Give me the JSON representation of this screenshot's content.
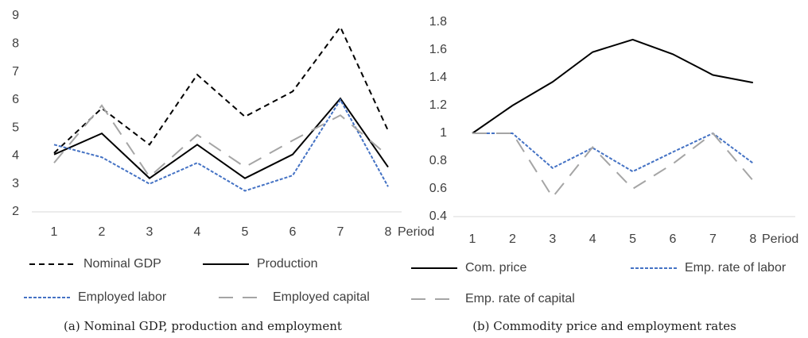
{
  "chart_data": [
    {
      "type": "line",
      "caption": "(a) Nominal GDP, production and employment",
      "x_label": "Period",
      "categories": [
        "1",
        "2",
        "3",
        "4",
        "5",
        "6",
        "7",
        "8"
      ],
      "ylim": [
        2,
        9
      ],
      "yticks": [
        2,
        3,
        4,
        5,
        6,
        7,
        8,
        9
      ],
      "grid": false,
      "legend": "bottom",
      "series": [
        {
          "name": "Nominal GDP",
          "color": "#000000",
          "style": "dashed",
          "values": [
            4.1,
            5.7,
            4.4,
            6.9,
            5.4,
            6.3,
            8.6,
            4.9
          ]
        },
        {
          "name": "Production",
          "color": "#000000",
          "style": "solid",
          "values": [
            4.05,
            4.8,
            3.2,
            4.4,
            3.2,
            4.05,
            6.05,
            3.6
          ]
        },
        {
          "name": "Employed labor",
          "color": "#4472c4",
          "style": "dotted",
          "values": [
            4.4,
            3.95,
            3.0,
            3.75,
            2.75,
            3.3,
            6.0,
            2.9
          ]
        },
        {
          "name": "Employed capital",
          "color": "#a5a5a5",
          "style": "long-dash",
          "values": [
            3.75,
            5.8,
            3.25,
            4.75,
            3.6,
            4.55,
            5.45,
            4.0
          ]
        }
      ]
    },
    {
      "type": "line",
      "caption": "(b) Commodity price and employment rates",
      "x_label": "Period",
      "categories": [
        "1",
        "2",
        "3",
        "4",
        "5",
        "6",
        "7",
        "8"
      ],
      "ylim": [
        0.4,
        1.8
      ],
      "yticks": [
        0.4,
        0.6,
        0.8,
        1,
        1.2,
        1.4,
        1.6,
        1.8
      ],
      "grid": false,
      "legend": "bottom",
      "series": [
        {
          "name": "Com. price",
          "color": "#000000",
          "style": "solid",
          "values": [
            1,
            1.2,
            1.37,
            1.585,
            1.675,
            1.57,
            1.42,
            1.365
          ]
        },
        {
          "name": "Emp. rate of labor",
          "color": "#4472c4",
          "style": "dotted",
          "values": [
            1,
            1,
            0.75,
            0.895,
            0.725,
            0.865,
            1,
            0.785
          ]
        },
        {
          "name": "Emp. rate of capital",
          "color": "#a5a5a5",
          "style": "long-dash",
          "values": [
            1,
            1,
            0.54,
            0.9,
            0.6,
            0.78,
            1,
            0.66
          ]
        }
      ]
    }
  ]
}
